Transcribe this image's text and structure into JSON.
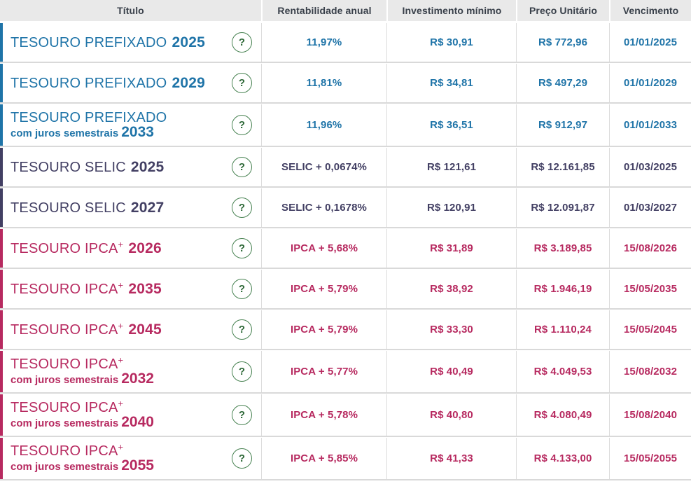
{
  "header": {
    "columns": [
      "Título",
      "Rentabilidade anual",
      "Investimento mínimo",
      "Preço Unitário",
      "Vencimento"
    ]
  },
  "help_label": "?",
  "colors": {
    "prefixado_blue": "#1f74a8",
    "selic_navy": "#423f63",
    "ipca_magenta": "#b72a60",
    "help_green": "#4a8454",
    "header_bg": "#e9e9e9",
    "divider": "#d9d9d9"
  },
  "rows": [
    {
      "theme": "blue",
      "name": "TESOURO PREFIXADO",
      "plus": "",
      "sub": "",
      "year": "2025",
      "rate": "11,97%",
      "min": "R$ 30,91",
      "price": "R$ 772,96",
      "due": "01/01/2025"
    },
    {
      "theme": "blue",
      "name": "TESOURO PREFIXADO",
      "plus": "",
      "sub": "",
      "year": "2029",
      "rate": "11,81%",
      "min": "R$ 34,81",
      "price": "R$ 497,29",
      "due": "01/01/2029"
    },
    {
      "theme": "blue",
      "name": "TESOURO PREFIXADO",
      "plus": "",
      "sub": "com juros semestrais",
      "year": "2033",
      "rate": "11,96%",
      "min": "R$ 36,51",
      "price": "R$ 912,97",
      "due": "01/01/2033"
    },
    {
      "theme": "navy",
      "name": "TESOURO SELIC",
      "plus": "",
      "sub": "",
      "year": "2025",
      "rate": "SELIC + 0,0674%",
      "min": "R$ 121,61",
      "price": "R$ 12.161,85",
      "due": "01/03/2025"
    },
    {
      "theme": "navy",
      "name": "TESOURO SELIC",
      "plus": "",
      "sub": "",
      "year": "2027",
      "rate": "SELIC + 0,1678%",
      "min": "R$ 120,91",
      "price": "R$ 12.091,87",
      "due": "01/03/2027"
    },
    {
      "theme": "magenta",
      "name": "TESOURO IPCA",
      "plus": "+",
      "sub": "",
      "year": "2026",
      "rate": "IPCA + 5,68%",
      "min": "R$ 31,89",
      "price": "R$ 3.189,85",
      "due": "15/08/2026"
    },
    {
      "theme": "magenta",
      "name": "TESOURO IPCA",
      "plus": "+",
      "sub": "",
      "year": "2035",
      "rate": "IPCA + 5,79%",
      "min": "R$ 38,92",
      "price": "R$ 1.946,19",
      "due": "15/05/2035"
    },
    {
      "theme": "magenta",
      "name": "TESOURO IPCA",
      "plus": "+",
      "sub": "",
      "year": "2045",
      "rate": "IPCA + 5,79%",
      "min": "R$ 33,30",
      "price": "R$ 1.110,24",
      "due": "15/05/2045"
    },
    {
      "theme": "magenta",
      "name": "TESOURO IPCA",
      "plus": "+",
      "sub": "com juros semestrais",
      "year": "2032",
      "rate": "IPCA + 5,77%",
      "min": "R$ 40,49",
      "price": "R$ 4.049,53",
      "due": "15/08/2032"
    },
    {
      "theme": "magenta",
      "name": "TESOURO IPCA",
      "plus": "+",
      "sub": "com juros semestrais",
      "year": "2040",
      "rate": "IPCA + 5,78%",
      "min": "R$ 40,80",
      "price": "R$ 4.080,49",
      "due": "15/08/2040"
    },
    {
      "theme": "magenta",
      "name": "TESOURO IPCA",
      "plus": "+",
      "sub": "com juros semestrais",
      "year": "2055",
      "rate": "IPCA + 5,85%",
      "min": "R$ 41,33",
      "price": "R$ 4.133,00",
      "due": "15/05/2055"
    }
  ]
}
